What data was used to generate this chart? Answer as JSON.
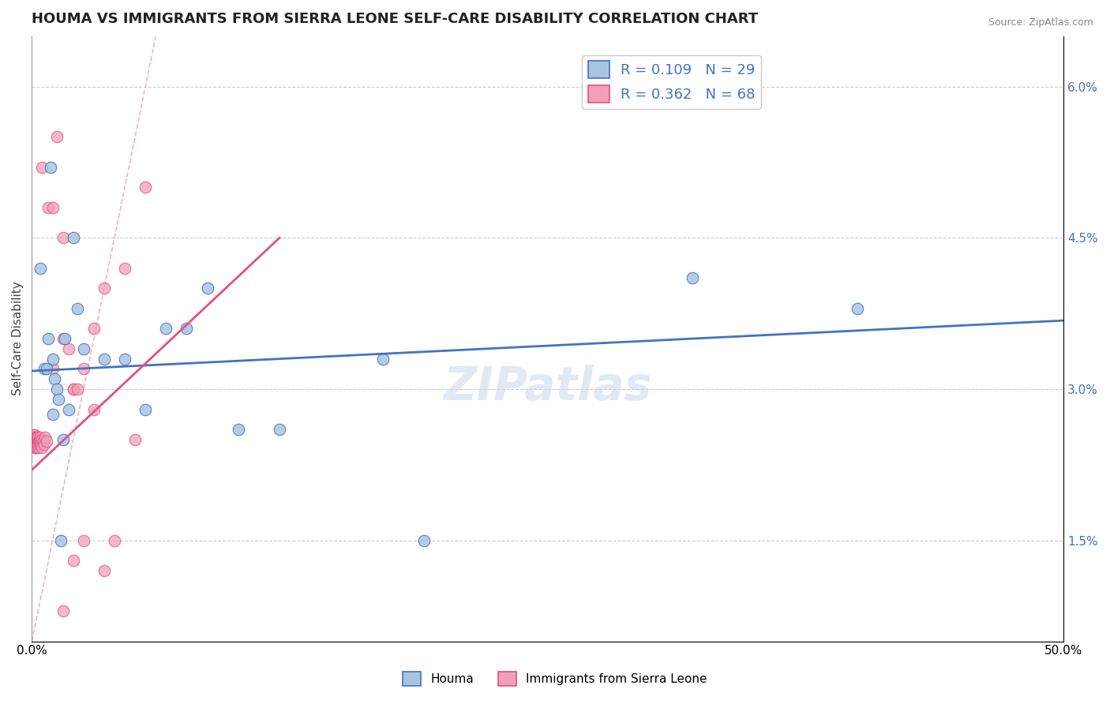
{
  "title": "HOUMA VS IMMIGRANTS FROM SIERRA LEONE SELF-CARE DISABILITY CORRELATION CHART",
  "source": "Source: ZipAtlas.com",
  "ylabel": "Self-Care Disability",
  "xlim": [
    0.0,
    50.0
  ],
  "ylim": [
    0.5,
    6.5
  ],
  "yticks": [
    1.5,
    3.0,
    4.5,
    6.0
  ],
  "color_houma": "#a8c4e0",
  "color_sierra": "#f0a0b8",
  "color_houma_line": "#4472c4",
  "color_sierra_line": "#e05080",
  "color_diag": "#e8b0b8",
  "watermark_text": "ZIPatlas",
  "legend_label1": "R = 0.109   N = 29",
  "legend_label2": "R = 0.362   N = 68",
  "houma_x": [
    0.4,
    0.6,
    0.8,
    0.9,
    1.0,
    1.1,
    1.2,
    1.3,
    1.5,
    1.6,
    1.8,
    2.0,
    2.2,
    2.5,
    3.5,
    4.5,
    5.5,
    6.5,
    7.5,
    8.5,
    10.0,
    12.0,
    17.0,
    19.0,
    32.0,
    40.0,
    0.7,
    1.0,
    1.4
  ],
  "houma_y": [
    4.2,
    3.2,
    3.5,
    5.2,
    3.3,
    3.1,
    3.0,
    2.9,
    2.5,
    3.5,
    2.8,
    4.5,
    3.8,
    3.4,
    3.3,
    3.3,
    2.8,
    3.6,
    3.6,
    4.0,
    2.6,
    2.6,
    3.3,
    1.5,
    4.1,
    3.8,
    3.2,
    2.75,
    1.5
  ],
  "sierra_cluster_x": [
    0.05,
    0.07,
    0.08,
    0.1,
    0.1,
    0.12,
    0.12,
    0.13,
    0.14,
    0.15,
    0.15,
    0.16,
    0.17,
    0.18,
    0.18,
    0.19,
    0.2,
    0.2,
    0.21,
    0.22,
    0.22,
    0.23,
    0.24,
    0.25,
    0.25,
    0.26,
    0.27,
    0.28,
    0.29,
    0.3,
    0.3,
    0.32,
    0.34,
    0.35,
    0.36,
    0.38,
    0.4,
    0.42,
    0.45,
    0.48,
    0.5,
    0.55,
    0.6,
    0.65,
    0.7
  ],
  "sierra_cluster_y": [
    2.55,
    2.5,
    2.48,
    2.52,
    2.45,
    2.55,
    2.42,
    2.48,
    2.5,
    2.45,
    2.52,
    2.48,
    2.45,
    2.5,
    2.42,
    2.45,
    2.48,
    2.52,
    2.45,
    2.5,
    2.42,
    2.48,
    2.45,
    2.52,
    2.48,
    2.42,
    2.45,
    2.5,
    2.48,
    2.52,
    2.45,
    2.48,
    2.42,
    2.5,
    2.45,
    2.48,
    2.52,
    2.48,
    2.45,
    2.5,
    2.42,
    2.48,
    2.45,
    2.52,
    2.48
  ],
  "sierra_spread_x": [
    0.5,
    0.8,
    1.0,
    1.2,
    1.5,
    2.0,
    2.5,
    3.0,
    3.5,
    4.5,
    5.5,
    1.5,
    2.0,
    3.0,
    2.5,
    4.0,
    5.0,
    1.0,
    2.0,
    1.5,
    3.5,
    1.8,
    2.2
  ],
  "sierra_spread_y": [
    5.2,
    4.8,
    4.8,
    5.5,
    4.5,
    3.0,
    3.2,
    3.6,
    4.0,
    4.2,
    5.0,
    3.5,
    3.0,
    2.8,
    1.5,
    1.5,
    2.5,
    3.2,
    1.3,
    0.8,
    1.2,
    3.4,
    3.0
  ],
  "blue_line_x0": 0.0,
  "blue_line_y0": 3.18,
  "blue_line_x1": 50.0,
  "blue_line_y1": 3.68,
  "pink_line_x0": 0.0,
  "pink_line_y0": 2.2,
  "pink_line_x1": 12.0,
  "pink_line_y1": 4.5,
  "diag_line_x0": 0.0,
  "diag_line_y0": 0.5,
  "diag_line_x1": 6.0,
  "diag_line_y1": 6.5
}
